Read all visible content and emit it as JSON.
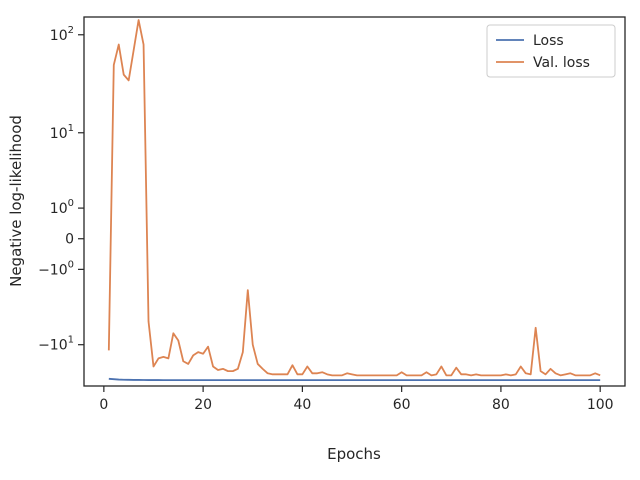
{
  "chart_data": {
    "type": "line",
    "title": "",
    "xlabel": "Epochs",
    "ylabel": "Negative log-likelihood",
    "yscale": "symlog",
    "xlim": [
      -4,
      105
    ],
    "ylim": [
      -27,
      150
    ],
    "x_ticks": [
      0,
      20,
      40,
      60,
      80,
      100
    ],
    "y_ticks": [
      {
        "value": 100,
        "base": "10",
        "exp": "2",
        "sign": ""
      },
      {
        "value": 10,
        "base": "10",
        "exp": "1",
        "sign": ""
      },
      {
        "value": 1,
        "base": "10",
        "exp": "0",
        "sign": ""
      },
      {
        "value": 0,
        "base": "0",
        "exp": "",
        "sign": ""
      },
      {
        "value": -1,
        "base": "10",
        "exp": "0",
        "sign": "−"
      },
      {
        "value": -10,
        "base": "10",
        "exp": "1",
        "sign": "−"
      }
    ],
    "grid": false,
    "legend_position": "top-right",
    "series": [
      {
        "name": "Loss",
        "color": "#4c72b0",
        "x": [
          1,
          2,
          3,
          4,
          5,
          6,
          7,
          8,
          9,
          10,
          11,
          12,
          13,
          14,
          15,
          16,
          17,
          18,
          19,
          20,
          21,
          22,
          23,
          24,
          25,
          26,
          27,
          28,
          29,
          30,
          31,
          32,
          33,
          34,
          35,
          36,
          37,
          38,
          39,
          40,
          41,
          42,
          43,
          44,
          45,
          46,
          47,
          48,
          49,
          50,
          51,
          52,
          53,
          54,
          55,
          56,
          57,
          58,
          59,
          60,
          61,
          62,
          63,
          64,
          65,
          66,
          67,
          68,
          69,
          70,
          71,
          72,
          73,
          74,
          75,
          76,
          77,
          78,
          79,
          80,
          81,
          82,
          83,
          84,
          85,
          86,
          87,
          88,
          89,
          90,
          91,
          92,
          93,
          94,
          95,
          96,
          97,
          98,
          99,
          100
        ],
        "y": [
          -22.8,
          -23.0,
          -23.2,
          -23.3,
          -23.35,
          -23.4,
          -23.42,
          -23.45,
          -23.47,
          -23.48,
          -23.49,
          -23.5,
          -23.5,
          -23.5,
          -23.5,
          -23.5,
          -23.5,
          -23.5,
          -23.5,
          -23.5,
          -23.5,
          -23.5,
          -23.5,
          -23.5,
          -23.5,
          -23.5,
          -23.5,
          -23.5,
          -23.5,
          -23.5,
          -23.5,
          -23.5,
          -23.5,
          -23.5,
          -23.5,
          -23.5,
          -23.5,
          -23.5,
          -23.5,
          -23.5,
          -23.5,
          -23.5,
          -23.5,
          -23.5,
          -23.5,
          -23.5,
          -23.5,
          -23.5,
          -23.5,
          -23.5,
          -23.5,
          -23.5,
          -23.5,
          -23.5,
          -23.5,
          -23.5,
          -23.5,
          -23.5,
          -23.5,
          -23.5,
          -23.5,
          -23.5,
          -23.5,
          -23.5,
          -23.5,
          -23.5,
          -23.5,
          -23.5,
          -23.5,
          -23.5,
          -23.5,
          -23.5,
          -23.5,
          -23.5,
          -23.5,
          -23.5,
          -23.5,
          -23.5,
          -23.5,
          -23.5,
          -23.5,
          -23.5,
          -23.5,
          -23.5,
          -23.5,
          -23.5,
          -23.5,
          -23.5,
          -23.5,
          -23.5,
          -23.5,
          -23.5,
          -23.5,
          -23.5,
          -23.5,
          -23.5,
          -23.5,
          -23.5,
          -23.5,
          -23.5
        ]
      },
      {
        "name": "Val. loss",
        "color": "#dd8452",
        "x": [
          1,
          2,
          3,
          4,
          5,
          6,
          7,
          8,
          9,
          10,
          11,
          12,
          13,
          14,
          15,
          16,
          17,
          18,
          19,
          20,
          21,
          22,
          23,
          24,
          25,
          26,
          27,
          28,
          29,
          30,
          31,
          32,
          33,
          34,
          35,
          36,
          37,
          38,
          39,
          40,
          41,
          42,
          43,
          44,
          45,
          46,
          47,
          48,
          49,
          50,
          51,
          52,
          53,
          54,
          55,
          56,
          57,
          58,
          59,
          60,
          61,
          62,
          63,
          64,
          65,
          66,
          67,
          68,
          69,
          70,
          71,
          72,
          73,
          74,
          75,
          76,
          77,
          78,
          79,
          80,
          81,
          82,
          83,
          84,
          85,
          86,
          87,
          88,
          89,
          90,
          91,
          92,
          93,
          94,
          95,
          96,
          97,
          98,
          99,
          100
        ],
        "y": [
          -11.5,
          50,
          80,
          40,
          35,
          70,
          140,
          80,
          -5.5,
          -17,
          -14,
          -13.5,
          -14,
          -7.5,
          -9,
          -15,
          -16,
          -13,
          -12,
          -12.5,
          -10.5,
          -17,
          -18.5,
          -18,
          -19,
          -19,
          -18,
          -12,
          -2.2,
          -10,
          -16,
          -18,
          -20,
          -20.5,
          -20.5,
          -20.5,
          -20.5,
          -16.5,
          -20.5,
          -20.5,
          -17,
          -20,
          -20,
          -19.5,
          -20.5,
          -21,
          -21,
          -21,
          -20,
          -20.5,
          -21,
          -21,
          -21,
          -21,
          -21,
          -21,
          -21,
          -21,
          -21,
          -19.5,
          -21,
          -21,
          -21,
          -21,
          -19.5,
          -21,
          -20.5,
          -17,
          -21,
          -21,
          -17.5,
          -20.5,
          -20.5,
          -21,
          -20.5,
          -21,
          -21,
          -21,
          -21,
          -21,
          -20.5,
          -21,
          -20.5,
          -17,
          -20,
          -20.5,
          -6.5,
          -19,
          -20.5,
          -18,
          -20,
          -21,
          -20.5,
          -20,
          -21,
          -21,
          -21,
          -21,
          -20,
          -21
        ]
      }
    ]
  }
}
